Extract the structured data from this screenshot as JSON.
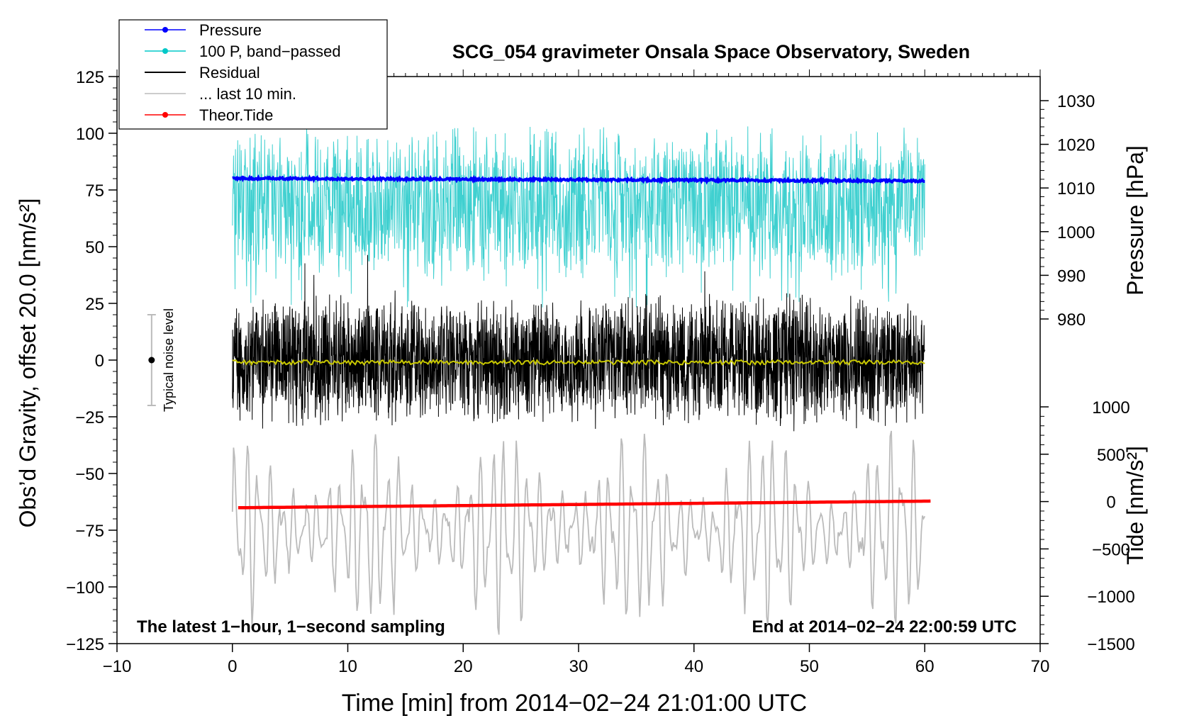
{
  "chart_data": {
    "type": "line",
    "title": "SCG_054 gravimeter Onsala Space Observatory, Sweden",
    "xlabel": "Time [min] from 2014−02−24 21:01:00 UTC",
    "ylabel_left": "Obs’d Gravity, offset 20.0 [nm/s²]",
    "ylabel_pressure": "Pressure [hPa]",
    "ylabel_tide": "Tide [nm/s²]",
    "xlim": [
      -10,
      70
    ],
    "ylim": [
      -125,
      125
    ],
    "pressure_lim": [
      980,
      1030
    ],
    "tide_lim": [
      -1500,
      1000
    ],
    "x_ticks": [
      "−10",
      "0",
      "10",
      "20",
      "30",
      "40",
      "50",
      "60",
      "70"
    ],
    "x_tick_values": [
      -10,
      0,
      10,
      20,
      30,
      40,
      50,
      60,
      70
    ],
    "y_ticks": [
      "125",
      "100",
      "75",
      "50",
      "25",
      "0",
      "−25",
      "−50",
      "−75",
      "−100",
      "−125"
    ],
    "y_tick_values": [
      125,
      100,
      75,
      50,
      25,
      0,
      -25,
      -50,
      -75,
      -100,
      -125
    ],
    "pressure_ticks": [
      "1030",
      "1020",
      "1010",
      "1000",
      "990",
      "980"
    ],
    "pressure_tick_values": [
      1030,
      1020,
      1010,
      1000,
      990,
      980
    ],
    "tide_ticks": [
      "1000",
      "500",
      "0",
      "−500",
      "−1000",
      "−1500"
    ],
    "tide_tick_values": [
      1000,
      500,
      0,
      -500,
      -1000,
      -1500
    ],
    "legend": [
      {
        "label": "Pressure",
        "color": "#0000ff",
        "marker": true
      },
      {
        "label": "100 P, band−passed",
        "color": "#00c8c8",
        "marker": true
      },
      {
        "label": "Residual",
        "color": "#000000",
        "marker": false
      },
      {
        "label": "... last 10 min.",
        "color": "#bbbbbb",
        "marker": false
      },
      {
        "label": "Theor.Tide",
        "color": "#ff0000",
        "marker": true
      }
    ],
    "series": [
      {
        "name": "Pressure",
        "color": "#0000ff",
        "axis": "pressure",
        "x_range": [
          0,
          60
        ],
        "start": 1012.2,
        "end": 1011.6
      },
      {
        "name": "100 P, band−passed",
        "color": "#40d0d0",
        "axis": "left",
        "x_range": [
          0,
          60
        ],
        "center": 68,
        "amplitude": 28
      },
      {
        "name": "Residual",
        "color": "#000000",
        "axis": "left",
        "x_range": [
          0,
          60
        ],
        "center": 0,
        "amplitude": 28
      },
      {
        "name": "Residual mean",
        "color": "#c8c800",
        "axis": "left",
        "x_range": [
          0,
          60
        ],
        "center": -1,
        "amplitude": 1
      },
      {
        "name": "... last 10 min.",
        "color": "#bbbbbb",
        "axis": "left",
        "x_range": [
          0,
          60
        ],
        "center": -75,
        "amplitude": 38
      },
      {
        "name": "Theor.Tide",
        "color": "#ff0000",
        "axis": "tide",
        "x_range": [
          0.5,
          60.5
        ],
        "start": -65,
        "end": 5
      }
    ],
    "noise_level": {
      "label": "Typical noise level",
      "x": -7,
      "center": 0,
      "low": -20,
      "high": 20
    },
    "annotations": {
      "left": "The latest 1−hour, 1−second sampling",
      "right": "End at 2014−02−24 22:00:59 UTC"
    }
  }
}
